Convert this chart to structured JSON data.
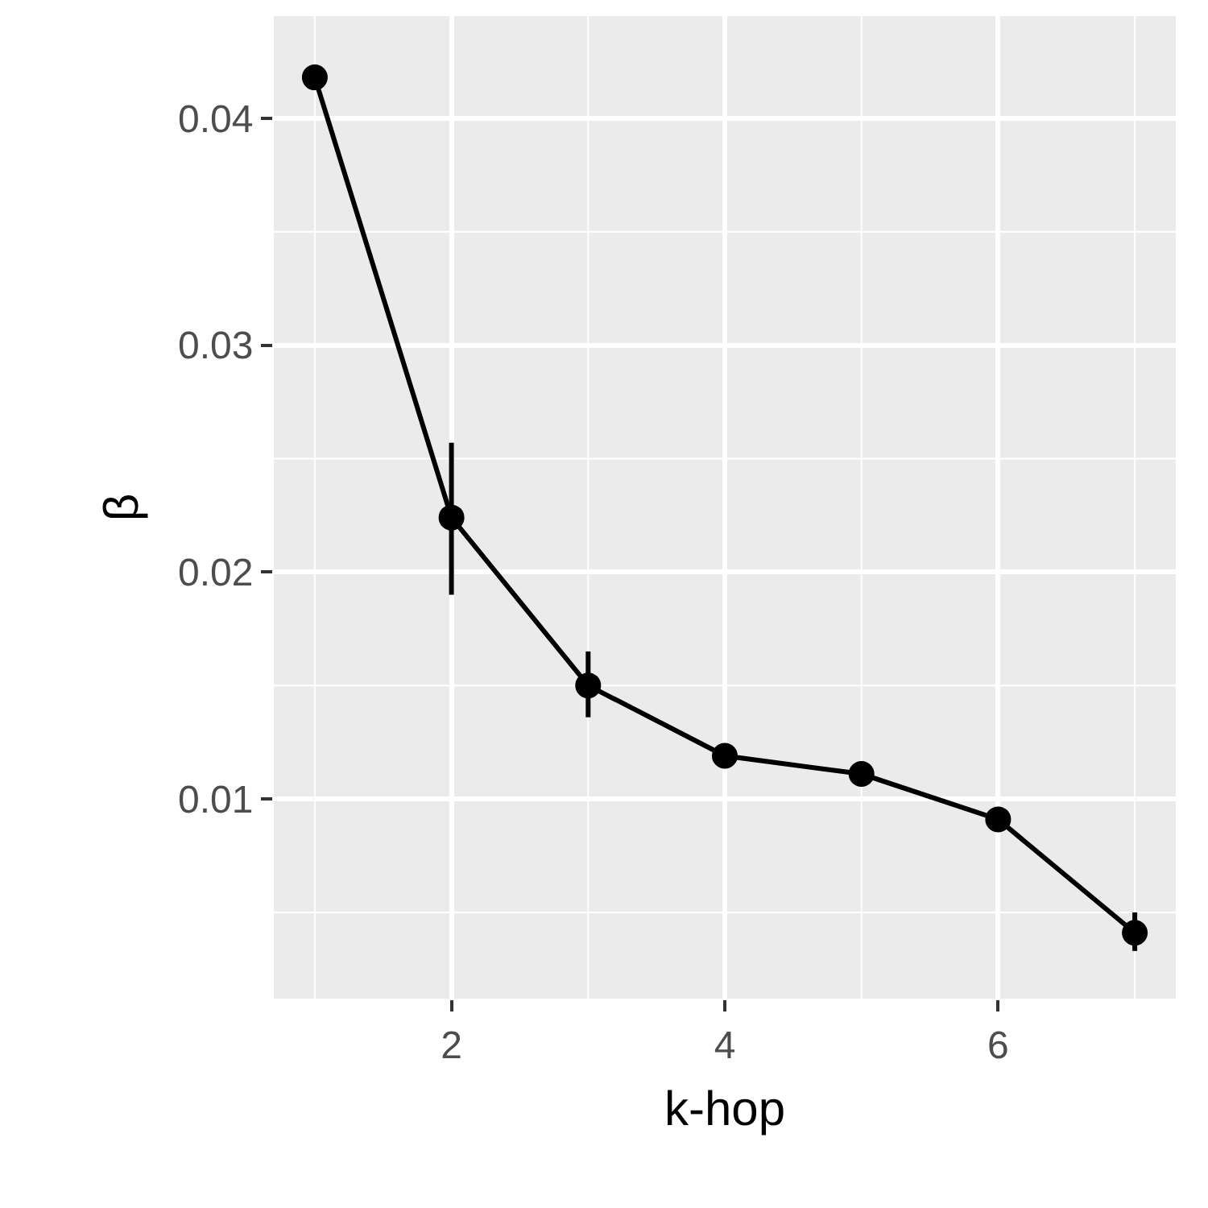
{
  "chart_data": {
    "type": "line",
    "xlabel": "k-hop",
    "ylabel": "β",
    "x": [
      1,
      2,
      3,
      4,
      5,
      6,
      7
    ],
    "series": [
      {
        "color": "#000000",
        "values": [
          0.0418,
          0.0224,
          0.015,
          0.0119,
          0.0111,
          0.0091,
          0.0041
        ],
        "errors": [
          null,
          [
            0.019,
            0.0257
          ],
          [
            0.0136,
            0.0165
          ],
          null,
          null,
          null,
          [
            0.0033,
            0.005
          ]
        ]
      }
    ],
    "xlim": [
      0.7,
      7.3
    ],
    "xticks": [
      2,
      4,
      6
    ],
    "ylim": [
      0.0012,
      0.0445
    ],
    "yticks": [
      0.01,
      0.02,
      0.03,
      0.04
    ],
    "grid": true,
    "marker": "circle",
    "line_style": "solid"
  }
}
